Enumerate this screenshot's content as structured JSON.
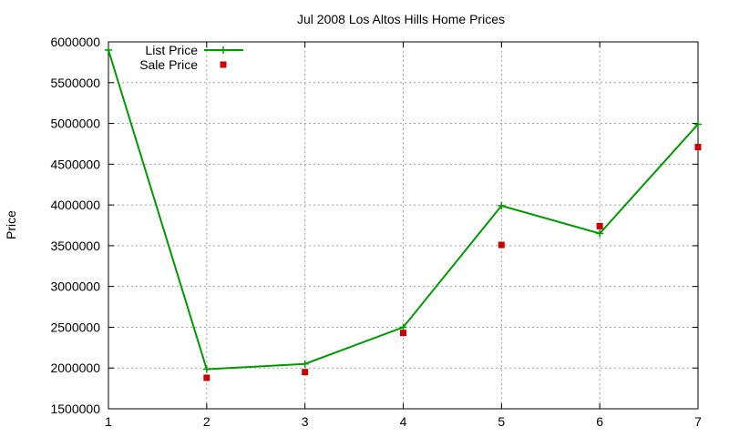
{
  "chart_data": {
    "type": "line",
    "title": "Jul 2008 Los Altos Hills Home Prices",
    "xlabel": "",
    "ylabel": "Price",
    "x": [
      1,
      2,
      3,
      4,
      5,
      6,
      7
    ],
    "xlim": [
      1,
      7
    ],
    "ylim": [
      1500000,
      6000000
    ],
    "x_ticks": [
      1,
      2,
      3,
      4,
      5,
      6,
      7
    ],
    "y_ticks": [
      1500000,
      2000000,
      2500000,
      3000000,
      3500000,
      4000000,
      4500000,
      5000000,
      5500000,
      6000000
    ],
    "grid": true,
    "legend_position": "top-left",
    "series": [
      {
        "name": "List Price",
        "style": "line+cross",
        "color": "#009900",
        "values": [
          5900000,
          1985000,
          2050000,
          2500000,
          3990000,
          3650000,
          4990000
        ]
      },
      {
        "name": "Sale Price",
        "style": "square-markers",
        "color": "#cc0000",
        "values": [
          null,
          1880000,
          1950000,
          2430000,
          3510000,
          3740000,
          4710000
        ]
      }
    ]
  }
}
